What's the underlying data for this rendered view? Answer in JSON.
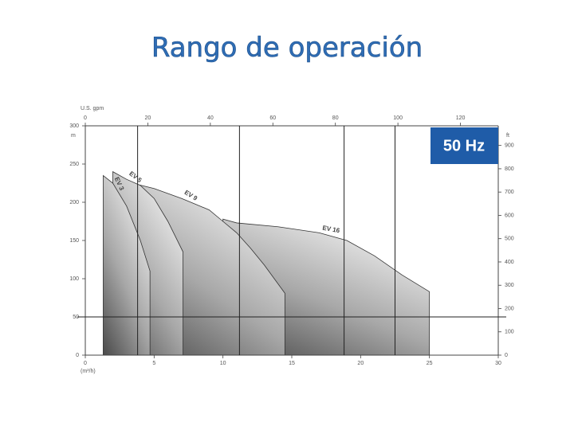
{
  "chart_data": {
    "type": "area",
    "title": "Rango de operación",
    "x_label": "(m³/h)",
    "y_label": "m",
    "x2_label": "U.S. gpm",
    "y2_label": "ft",
    "badge": "50 Hz",
    "badge_color": "#1f5ca8",
    "xlim": [
      0,
      30
    ],
    "xticks": [
      0,
      5,
      10,
      15,
      20,
      25,
      30
    ],
    "ylim": [
      0,
      300
    ],
    "yticks": [
      0,
      50,
      100,
      150,
      200,
      250,
      300
    ],
    "x2lim": [
      0,
      132.1
    ],
    "x2ticks": [
      0,
      20,
      40,
      60,
      80,
      100,
      120
    ],
    "y2lim": [
      0,
      984.3
    ],
    "y2ticks": [
      0,
      100,
      200,
      300,
      400,
      500,
      600,
      700,
      800,
      900
    ],
    "vertical_lines": [
      3.8,
      11.2,
      18.8,
      22.5
    ],
    "horizontal_line": 50,
    "series": [
      {
        "name": "EV 16",
        "x": [
          10,
          11,
          14,
          17,
          19,
          21,
          23,
          25
        ],
        "values": [
          178,
          173,
          168,
          160,
          150,
          130,
          105,
          83
        ]
      },
      {
        "name": "EV 9",
        "x": [
          3.4,
          5,
          7,
          9,
          10,
          11,
          12,
          13,
          14.5
        ],
        "values": [
          225,
          218,
          205,
          190,
          175,
          160,
          140,
          118,
          81
        ]
      },
      {
        "name": "EV 5",
        "x": [
          2,
          3,
          4,
          5,
          6,
          7.1
        ],
        "values": [
          240,
          230,
          222,
          205,
          175,
          135
        ]
      },
      {
        "name": "EV 3",
        "x": [
          1.3,
          2,
          3,
          4,
          4.7
        ],
        "values": [
          235,
          225,
          195,
          150,
          110
        ]
      }
    ]
  }
}
